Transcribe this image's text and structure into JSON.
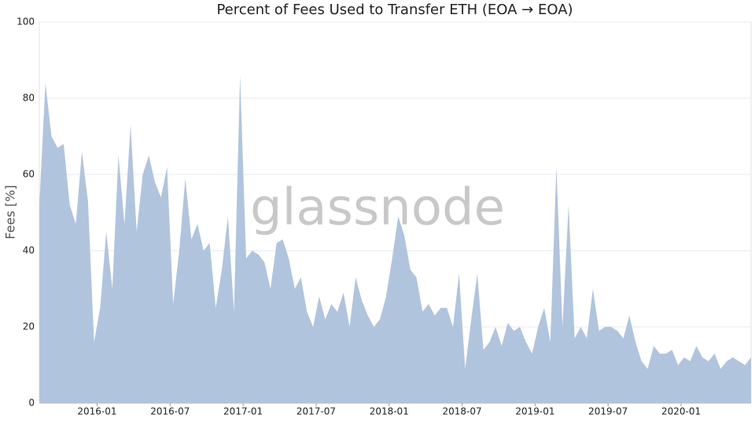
{
  "chart_data": {
    "type": "area",
    "title": "Percent of Fees Used to Transfer ETH (EOA → EOA)",
    "y_label": "Fees [%]",
    "watermark": "glassnode",
    "color": "#b1c4de",
    "grid": true,
    "ylim": [
      0,
      100
    ],
    "yticks": [
      0,
      20,
      40,
      60,
      80,
      100
    ],
    "xticks": [
      "2016-01",
      "2016-07",
      "2017-01",
      "2017-07",
      "2018-01",
      "2018-07",
      "2019-01",
      "2019-07",
      "2020-01"
    ],
    "x": [
      "2015-08",
      "2015-08",
      "2015-09",
      "2015-09",
      "2015-10",
      "2015-10",
      "2015-11",
      "2015-11",
      "2015-12",
      "2015-12",
      "2016-01",
      "2016-01",
      "2016-02",
      "2016-02",
      "2016-03",
      "2016-03",
      "2016-04",
      "2016-04",
      "2016-05",
      "2016-05",
      "2016-06",
      "2016-06",
      "2016-07",
      "2016-07",
      "2016-08",
      "2016-08",
      "2016-09",
      "2016-09",
      "2016-10",
      "2016-10",
      "2016-11",
      "2016-11",
      "2016-12",
      "2016-12",
      "2017-01",
      "2017-01",
      "2017-02",
      "2017-02",
      "2017-03",
      "2017-03",
      "2017-04",
      "2017-04",
      "2017-05",
      "2017-05",
      "2017-06",
      "2017-06",
      "2017-07",
      "2017-07",
      "2017-08",
      "2017-08",
      "2017-09",
      "2017-09",
      "2017-10",
      "2017-10",
      "2017-11",
      "2017-11",
      "2017-12",
      "2017-12",
      "2018-01",
      "2018-01",
      "2018-02",
      "2018-02",
      "2018-03",
      "2018-03",
      "2018-04",
      "2018-04",
      "2018-05",
      "2018-05",
      "2018-06",
      "2018-06",
      "2018-07",
      "2018-07",
      "2018-08",
      "2018-08",
      "2018-09",
      "2018-09",
      "2018-10",
      "2018-10",
      "2018-11",
      "2018-11",
      "2018-12",
      "2018-12",
      "2019-01",
      "2019-01",
      "2019-02",
      "2019-02",
      "2019-03",
      "2019-03",
      "2019-04",
      "2019-04",
      "2019-05",
      "2019-05",
      "2019-06",
      "2019-06",
      "2019-07",
      "2019-07",
      "2019-08",
      "2019-08",
      "2019-09",
      "2019-09",
      "2019-10",
      "2019-10",
      "2019-11",
      "2019-11",
      "2019-12",
      "2019-12",
      "2020-01",
      "2020-01",
      "2020-02",
      "2020-02",
      "2020-03",
      "2020-03",
      "2020-04",
      "2020-04",
      "2020-05",
      "2020-05",
      "2020-06",
      "2020-06"
    ],
    "values": [
      52,
      84,
      70,
      67,
      68,
      52,
      47,
      66,
      53,
      16,
      25,
      45,
      30,
      65,
      47,
      73,
      45,
      60,
      65,
      58,
      54,
      62,
      26,
      40,
      59,
      43,
      47,
      40,
      42,
      25,
      35,
      49,
      24,
      86,
      38,
      40,
      39,
      37,
      30,
      42,
      43,
      38,
      30,
      33,
      24,
      20,
      28,
      22,
      26,
      24,
      29,
      20,
      33,
      27,
      23,
      20,
      22,
      28,
      38,
      49,
      44,
      35,
      33,
      24,
      26,
      23,
      25,
      25,
      20,
      34,
      9,
      22,
      34,
      14,
      16,
      20,
      15,
      21,
      19,
      20,
      16,
      13,
      20,
      25,
      16,
      62,
      20,
      52,
      17,
      20,
      17,
      30,
      19,
      20,
      20,
      19,
      17,
      23,
      16,
      11,
      9,
      15,
      13,
      13,
      14,
      10,
      12,
      11,
      15,
      12,
      11,
      13,
      9,
      11,
      12,
      11,
      10,
      12
    ]
  }
}
